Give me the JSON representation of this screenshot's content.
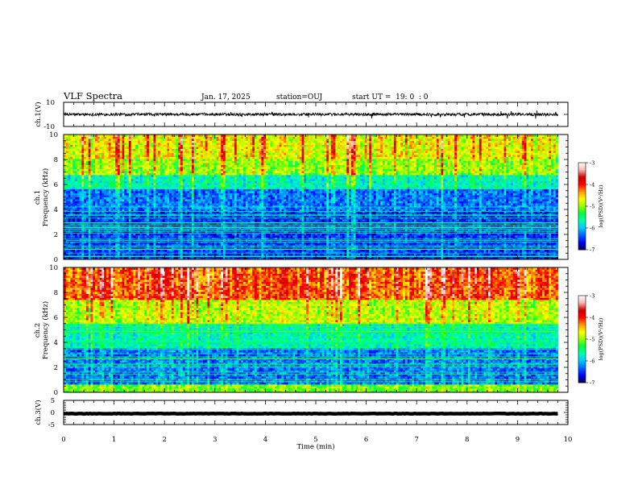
{
  "header": {
    "title": "VLF Spectra",
    "date": "Jan. 17, 2025",
    "station": "station=OUJ",
    "start_ut": "start UT =  19: 0  : 0"
  },
  "chart_data": [
    {
      "type": "line",
      "name": "ch1-waveform",
      "ylabel": "ch.1(V)",
      "ylim": [
        -10,
        10
      ],
      "yticks": [
        10,
        -10
      ],
      "xlim": [
        0,
        10
      ],
      "x_extent_min": 9.8,
      "baseline_v": 0,
      "noise_amplitude_v": 2,
      "color": "#000000"
    },
    {
      "type": "heatmap",
      "name": "ch1-spectrogram",
      "ylabel_channel": "ch.1",
      "ylabel": "Frequency (kHz)",
      "ylim": [
        0,
        10
      ],
      "yticks": [
        0,
        2,
        4,
        6,
        8,
        10
      ],
      "xlim": [
        0,
        10
      ],
      "x_extent_min": 9.8,
      "colorbar": {
        "label": "log(PSD)(V²/Hz)",
        "range": [
          -7,
          -3
        ],
        "ticks": [
          "-3",
          "-4",
          "-5",
          "-6",
          "-7"
        ],
        "colors": [
          "#00004b",
          "#0000ff",
          "#0064ff",
          "#00c8ff",
          "#00ffb4",
          "#00ff3c",
          "#96ff00",
          "#ffff00",
          "#ff9600",
          "#ff0000",
          "#c80000",
          "#ffb4b4",
          "#ffffff"
        ]
      },
      "level_profile_note": "log PSD by frequency band, kHz",
      "band_levels": [
        {
          "f": [
            0,
            0.3
          ],
          "v": -6.6
        },
        {
          "f": [
            0.3,
            3.8
          ],
          "v": -6.5
        },
        {
          "f": [
            3.8,
            5.6
          ],
          "v": -6.3
        },
        {
          "f": [
            5.6,
            6.8
          ],
          "v": -5.7
        },
        {
          "f": [
            6.8,
            8.0
          ],
          "v": -5.0
        },
        {
          "f": [
            8.0,
            10
          ],
          "v": -4.7
        }
      ]
    },
    {
      "type": "heatmap",
      "name": "ch2-spectrogram",
      "ylabel_channel": "ch.2",
      "ylabel": "Frequency (kHz)",
      "ylim": [
        0,
        10
      ],
      "yticks": [
        0,
        2,
        4,
        6,
        8,
        10
      ],
      "xlim": [
        0,
        10
      ],
      "x_extent_min": 9.8,
      "colorbar": {
        "label": "log(PSD)(V²/Hz)",
        "range": [
          -7,
          -3
        ],
        "ticks": [
          "-3",
          "-4",
          "-5",
          "-6",
          "-7"
        ],
        "colors": [
          "#00004b",
          "#0000ff",
          "#0064ff",
          "#00c8ff",
          "#00ffb4",
          "#00ff3c",
          "#96ff00",
          "#ffff00",
          "#ff9600",
          "#ff0000",
          "#c80000",
          "#ffb4b4",
          "#ffffff"
        ]
      },
      "band_levels": [
        {
          "f": [
            0,
            0.6
          ],
          "v": -5.1
        },
        {
          "f": [
            0.6,
            3.5
          ],
          "v": -6.3
        },
        {
          "f": [
            3.5,
            5.5
          ],
          "v": -5.7
        },
        {
          "f": [
            5.5,
            7.5
          ],
          "v": -4.9
        },
        {
          "f": [
            7.5,
            10
          ],
          "v": -4.2
        }
      ]
    },
    {
      "type": "line",
      "name": "ch3-waveform",
      "ylabel": "ch.3(V)",
      "ylim": [
        -5,
        5
      ],
      "yticks": [
        5,
        0,
        -5
      ],
      "xlim": [
        0,
        10
      ],
      "x_extent_min": 9.8,
      "baseline_v": -0.5,
      "noise_amplitude_v": 0.15,
      "color": "#000000"
    }
  ],
  "xaxis": {
    "label": "Time (min)",
    "ticks": [
      "0",
      "1",
      "2",
      "3",
      "4",
      "5",
      "6",
      "7",
      "8",
      "9",
      "10"
    ]
  }
}
